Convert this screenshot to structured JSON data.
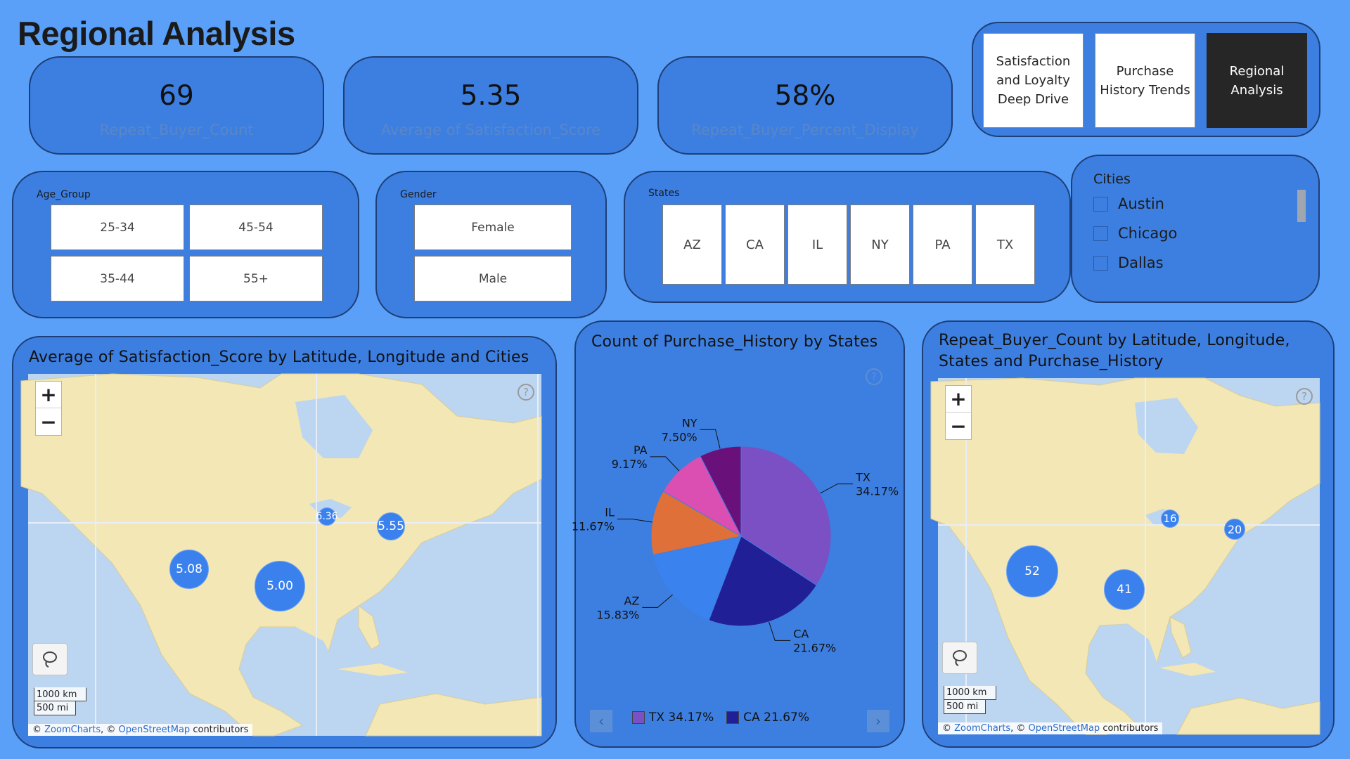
{
  "page": {
    "title": "Regional Analysis"
  },
  "kpis": [
    {
      "value": "69",
      "label": "Repeat_Buyer_Count"
    },
    {
      "value": "5.35",
      "label": "Average of Satisfaction_Score"
    },
    {
      "value": "58%",
      "label": "Repeat_Buyer_Percent_Display"
    }
  ],
  "nav": {
    "buttons": [
      {
        "label": "Satisfaction and Loyalty Deep Drive",
        "active": false
      },
      {
        "label": "Purchase History Trends",
        "active": false
      },
      {
        "label": "Regional Analysis",
        "active": true
      }
    ]
  },
  "slicers": {
    "age_group": {
      "title": "Age_Group",
      "options": [
        "25-34",
        "45-54",
        "35-44",
        "55+"
      ]
    },
    "gender": {
      "title": "Gender",
      "options": [
        "Female",
        "Male"
      ]
    },
    "states": {
      "title": "States",
      "options": [
        "AZ",
        "CA",
        "IL",
        "NY",
        "PA",
        "TX"
      ]
    },
    "cities": {
      "title": "Cities",
      "options": [
        "Austin",
        "Chicago",
        "Dallas"
      ]
    }
  },
  "map1": {
    "title": "Average of Satisfaction_Score by Latitude, Longitude and Cities",
    "bubbles": [
      "6.36",
      "5.55",
      "5.08",
      "5.00"
    ],
    "scale_km": "1000 km",
    "scale_mi": "500 mi",
    "attribution": {
      "prefix": "©",
      "zoomcharts": "ZoomCharts",
      "sep": ", ©",
      "osm": "OpenStreetMap",
      "suffix": "contributors"
    }
  },
  "map2": {
    "title": "Repeat_Buyer_Count by Latitude, Longitude, States and Purchase_History",
    "bubbles": [
      "16",
      "20",
      "52",
      "41"
    ],
    "scale_km": "1000 km",
    "scale_mi": "500 mi",
    "attribution": {
      "prefix": "©",
      "zoomcharts": "ZoomCharts",
      "sep": ", ©",
      "osm": "OpenStreetMap",
      "suffix": "contributors"
    }
  },
  "colors": {
    "background": "#5aa0f8",
    "card": "#3d7fe0",
    "card_border": "#1d3f78",
    "bubble": "#3a81ee",
    "active_nav": "#262626"
  },
  "chart_data": {
    "type": "pie",
    "title": "Count of Purchase_History by States",
    "categories": [
      "TX",
      "CA",
      "AZ",
      "IL",
      "PA",
      "NY"
    ],
    "values": [
      34.17,
      21.67,
      15.83,
      11.67,
      9.17,
      7.5
    ],
    "labels": [
      "34.17%",
      "21.67%",
      "15.83%",
      "11.67%",
      "9.17%",
      "7.50%"
    ],
    "colors": [
      "#7a50c4",
      "#211f96",
      "#3a82ee",
      "#e0703a",
      "#dc4fb2",
      "#6a107a"
    ],
    "legend": [
      "TX 34.17%",
      "CA 21.67%"
    ],
    "legend_position": "bottom"
  }
}
